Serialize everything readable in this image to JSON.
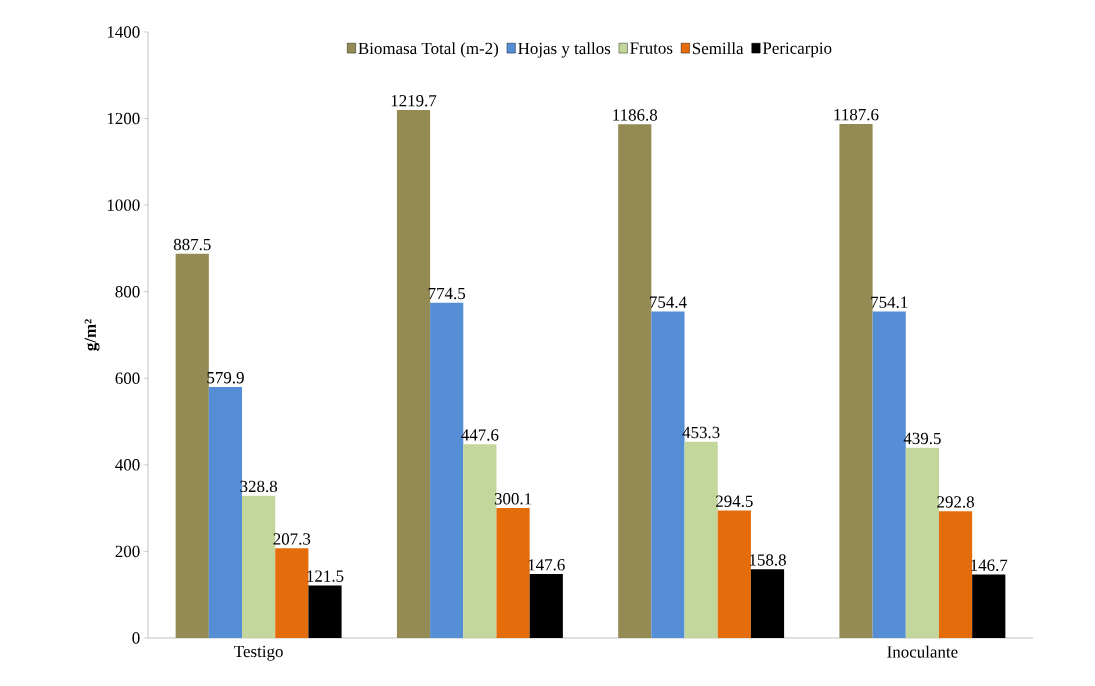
{
  "chart_data": {
    "type": "bar",
    "ylabel": "g/m²",
    "categories": [
      "Testigo",
      null,
      null,
      "Inoculante"
    ],
    "series": [
      {
        "name": "Biomasa Total (m-2)",
        "color": "#948a54",
        "values": [
          887.5,
          1219.7,
          1186.8,
          1187.6
        ]
      },
      {
        "name": "Hojas y tallos",
        "color": "#558ed5",
        "values": [
          579.9,
          774.5,
          754.4,
          754.1
        ]
      },
      {
        "name": "Frutos",
        "color": "#c3d69b",
        "values": [
          328.8,
          447.6,
          453.3,
          439.5
        ]
      },
      {
        "name": "Semilla",
        "color": "#e46c0a",
        "values": [
          207.3,
          300.1,
          294.5,
          292.8
        ]
      },
      {
        "name": "Pericarpio",
        "color": "#000000",
        "values": [
          121.5,
          147.6,
          158.8,
          146.7
        ]
      }
    ],
    "ylim": [
      0,
      1400
    ],
    "yticks": [
      0,
      200,
      400,
      600,
      800,
      1000,
      1200,
      1400
    ],
    "data_labels": true,
    "legend": "top",
    "grid": false
  }
}
